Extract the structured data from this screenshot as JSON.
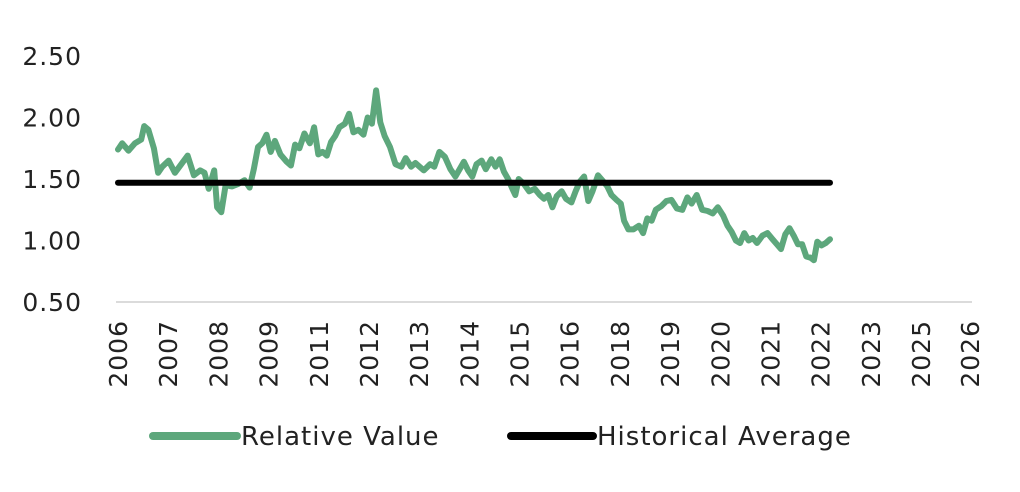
{
  "chart_data": {
    "type": "line",
    "ylim": [
      0.5,
      2.5
    ],
    "yticks": [
      "2.50",
      "2.00",
      "1.50",
      "1.00",
      "0.50"
    ],
    "ytick_values": [
      2.5,
      2.0,
      1.5,
      1.0,
      0.5
    ],
    "xlim": [
      2006.0,
      2026.2
    ],
    "xticks": [
      "2006",
      "2007",
      "2008",
      "2009",
      "2011",
      "2012",
      "2013",
      "2014",
      "2015",
      "2016",
      "2018",
      "2019",
      "2020",
      "2021",
      "2022",
      "2023",
      "2025",
      "2026"
    ],
    "xtick_values": [
      2006.0,
      2007.19,
      2008.38,
      2009.57,
      2010.76,
      2011.95,
      2013.14,
      2014.33,
      2015.52,
      2016.71,
      2017.9,
      2019.09,
      2020.28,
      2021.47,
      2022.66,
      2023.85,
      2025.04,
      2026.2
    ],
    "grid": false,
    "legend_position": "bottom",
    "series": [
      {
        "name": "Relative Value",
        "color": "#5da77c",
        "points": [
          [
            2006.0,
            1.74
          ],
          [
            2006.1,
            1.79
          ],
          [
            2006.25,
            1.73
          ],
          [
            2006.4,
            1.79
          ],
          [
            2006.55,
            1.82
          ],
          [
            2006.62,
            1.93
          ],
          [
            2006.72,
            1.9
          ],
          [
            2006.85,
            1.75
          ],
          [
            2006.95,
            1.55
          ],
          [
            2007.05,
            1.6
          ],
          [
            2007.2,
            1.65
          ],
          [
            2007.35,
            1.55
          ],
          [
            2007.5,
            1.62
          ],
          [
            2007.65,
            1.69
          ],
          [
            2007.8,
            1.53
          ],
          [
            2007.95,
            1.57
          ],
          [
            2008.05,
            1.55
          ],
          [
            2008.15,
            1.42
          ],
          [
            2008.28,
            1.57
          ],
          [
            2008.35,
            1.27
          ],
          [
            2008.45,
            1.23
          ],
          [
            2008.55,
            1.45
          ],
          [
            2008.7,
            1.44
          ],
          [
            2008.85,
            1.46
          ],
          [
            2009.0,
            1.49
          ],
          [
            2009.12,
            1.43
          ],
          [
            2009.22,
            1.58
          ],
          [
            2009.32,
            1.76
          ],
          [
            2009.42,
            1.79
          ],
          [
            2009.52,
            1.86
          ],
          [
            2009.62,
            1.72
          ],
          [
            2009.72,
            1.81
          ],
          [
            2009.85,
            1.7
          ],
          [
            2010.0,
            1.64
          ],
          [
            2010.1,
            1.61
          ],
          [
            2010.2,
            1.78
          ],
          [
            2010.3,
            1.75
          ],
          [
            2010.42,
            1.87
          ],
          [
            2010.55,
            1.79
          ],
          [
            2010.65,
            1.92
          ],
          [
            2010.75,
            1.7
          ],
          [
            2010.85,
            1.72
          ],
          [
            2010.95,
            1.69
          ],
          [
            2011.05,
            1.8
          ],
          [
            2011.15,
            1.85
          ],
          [
            2011.25,
            1.92
          ],
          [
            2011.38,
            1.95
          ],
          [
            2011.48,
            2.03
          ],
          [
            2011.58,
            1.88
          ],
          [
            2011.7,
            1.9
          ],
          [
            2011.82,
            1.86
          ],
          [
            2011.92,
            2.0
          ],
          [
            2012.02,
            1.95
          ],
          [
            2012.12,
            2.22
          ],
          [
            2012.22,
            1.96
          ],
          [
            2012.32,
            1.85
          ],
          [
            2012.45,
            1.76
          ],
          [
            2012.58,
            1.62
          ],
          [
            2012.72,
            1.6
          ],
          [
            2012.82,
            1.67
          ],
          [
            2012.95,
            1.6
          ],
          [
            2013.05,
            1.63
          ],
          [
            2013.15,
            1.6
          ],
          [
            2013.25,
            1.57
          ],
          [
            2013.4,
            1.62
          ],
          [
            2013.5,
            1.6
          ],
          [
            2013.62,
            1.72
          ],
          [
            2013.75,
            1.68
          ],
          [
            2013.88,
            1.58
          ],
          [
            2014.0,
            1.52
          ],
          [
            2014.1,
            1.58
          ],
          [
            2014.2,
            1.64
          ],
          [
            2014.3,
            1.57
          ],
          [
            2014.4,
            1.52
          ],
          [
            2014.5,
            1.62
          ],
          [
            2014.62,
            1.65
          ],
          [
            2014.72,
            1.58
          ],
          [
            2014.85,
            1.66
          ],
          [
            2014.95,
            1.6
          ],
          [
            2015.05,
            1.66
          ],
          [
            2015.15,
            1.56
          ],
          [
            2015.25,
            1.5
          ],
          [
            2015.35,
            1.42
          ],
          [
            2015.42,
            1.37
          ],
          [
            2015.5,
            1.5
          ],
          [
            2015.62,
            1.46
          ],
          [
            2015.75,
            1.4
          ],
          [
            2015.88,
            1.42
          ],
          [
            2016.0,
            1.37
          ],
          [
            2016.1,
            1.34
          ],
          [
            2016.2,
            1.37
          ],
          [
            2016.3,
            1.27
          ],
          [
            2016.4,
            1.36
          ],
          [
            2016.52,
            1.4
          ],
          [
            2016.62,
            1.34
          ],
          [
            2016.75,
            1.31
          ],
          [
            2016.85,
            1.4
          ],
          [
            2016.95,
            1.48
          ],
          [
            2017.05,
            1.52
          ],
          [
            2017.15,
            1.32
          ],
          [
            2017.25,
            1.4
          ],
          [
            2017.38,
            1.53
          ],
          [
            2017.48,
            1.49
          ],
          [
            2017.6,
            1.44
          ],
          [
            2017.7,
            1.37
          ],
          [
            2017.82,
            1.33
          ],
          [
            2017.92,
            1.3
          ],
          [
            2018.0,
            1.16
          ],
          [
            2018.1,
            1.09
          ],
          [
            2018.22,
            1.09
          ],
          [
            2018.35,
            1.12
          ],
          [
            2018.45,
            1.06
          ],
          [
            2018.55,
            1.18
          ],
          [
            2018.65,
            1.16
          ],
          [
            2018.75,
            1.25
          ],
          [
            2018.88,
            1.28
          ],
          [
            2019.0,
            1.32
          ],
          [
            2019.12,
            1.33
          ],
          [
            2019.25,
            1.26
          ],
          [
            2019.38,
            1.25
          ],
          [
            2019.5,
            1.35
          ],
          [
            2019.6,
            1.3
          ],
          [
            2019.72,
            1.37
          ],
          [
            2019.85,
            1.25
          ],
          [
            2019.98,
            1.24
          ],
          [
            2020.1,
            1.22
          ],
          [
            2020.22,
            1.27
          ],
          [
            2020.35,
            1.2
          ],
          [
            2020.45,
            1.12
          ],
          [
            2020.55,
            1.07
          ],
          [
            2020.65,
            1.0
          ],
          [
            2020.75,
            0.98
          ],
          [
            2020.85,
            1.06
          ],
          [
            2020.95,
            1.0
          ],
          [
            2021.05,
            1.02
          ],
          [
            2021.15,
            0.98
          ],
          [
            2021.28,
            1.04
          ],
          [
            2021.4,
            1.06
          ],
          [
            2021.52,
            1.01
          ],
          [
            2021.62,
            0.97
          ],
          [
            2021.72,
            0.93
          ],
          [
            2021.82,
            1.05
          ],
          [
            2021.92,
            1.1
          ],
          [
            2022.02,
            1.04
          ],
          [
            2022.12,
            0.97
          ],
          [
            2022.22,
            0.97
          ],
          [
            2022.32,
            0.87
          ],
          [
            2022.42,
            0.86
          ],
          [
            2022.5,
            0.84
          ],
          [
            2022.58,
            0.99
          ],
          [
            2022.68,
            0.96
          ],
          [
            2022.78,
            0.98
          ],
          [
            2022.88,
            1.01
          ]
        ]
      },
      {
        "name": "Historical Average",
        "color": "#000000",
        "points": [
          [
            2006.0,
            1.47
          ],
          [
            2022.88,
            1.47
          ]
        ]
      }
    ]
  }
}
